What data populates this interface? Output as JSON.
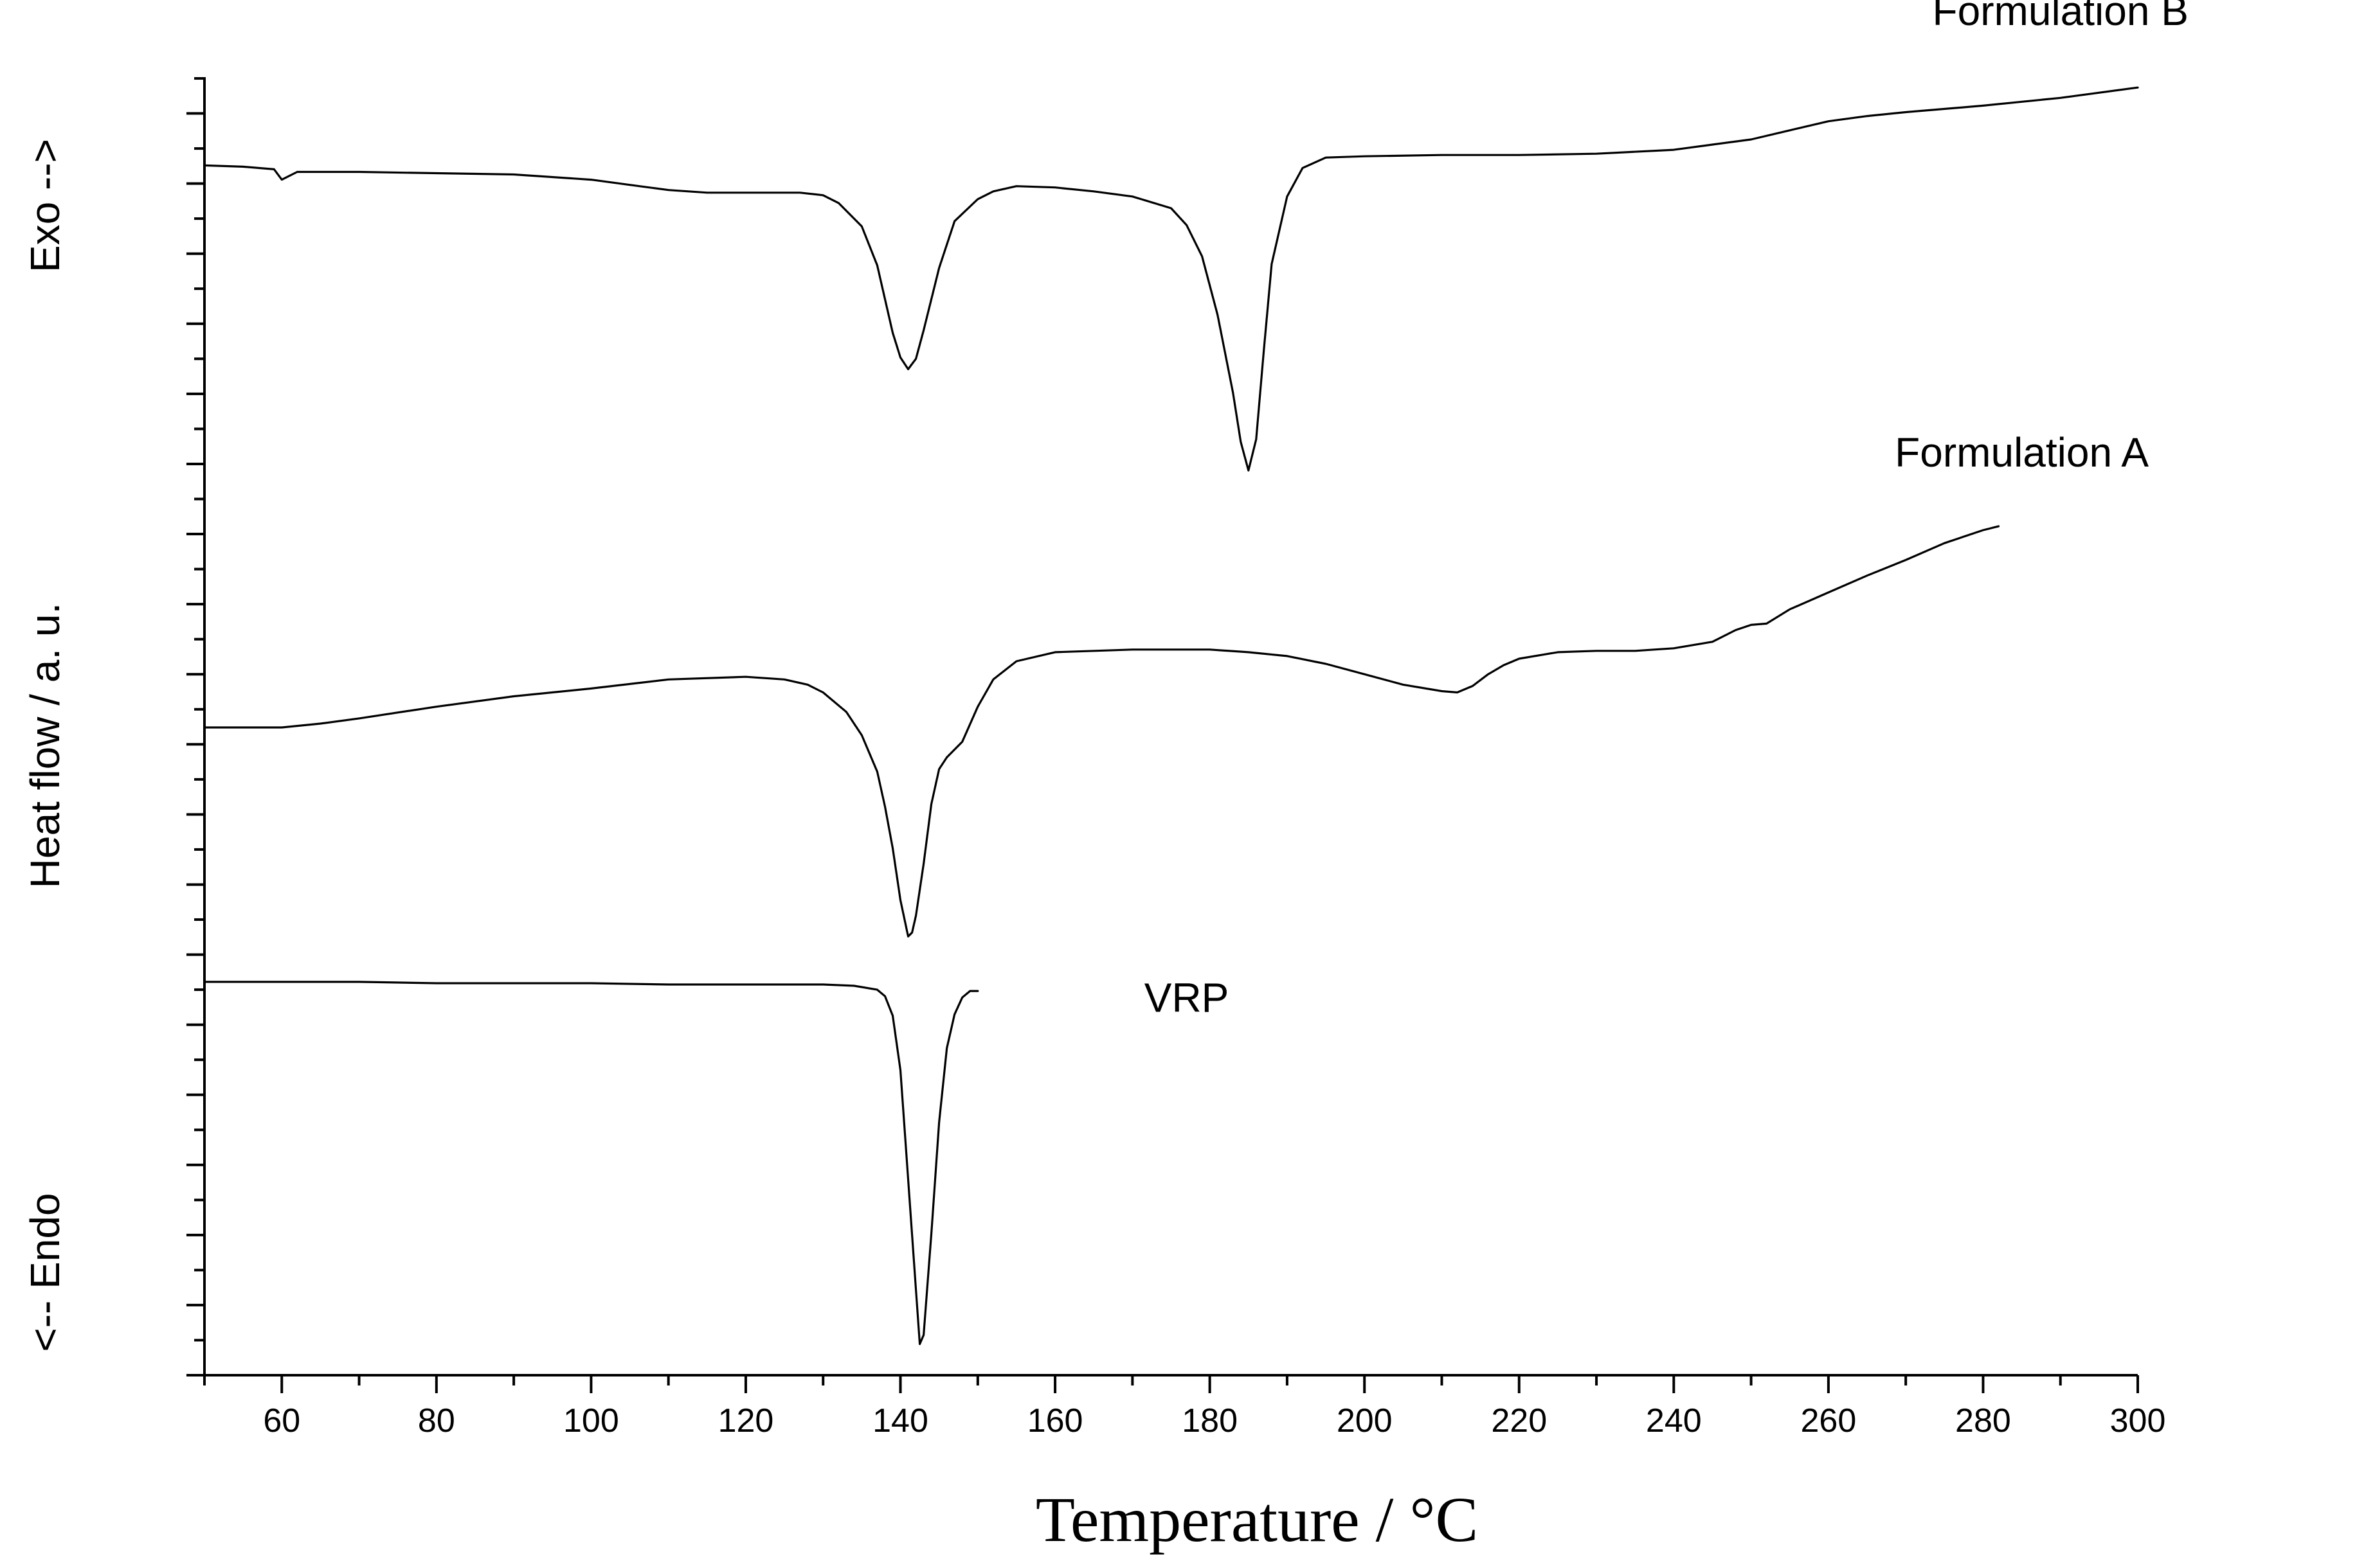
{
  "chart_data": {
    "type": "line",
    "title": "",
    "xlabel": "Temperature / °C",
    "ylabel": "Heat flow / a. u.",
    "ylabel_top": "Exo -->",
    "ylabel_bottom": "<-- Endo",
    "xlim": [
      50,
      300
    ],
    "ylim": [
      0,
      100
    ],
    "x_ticks": [
      60,
      80,
      100,
      120,
      140,
      160,
      180,
      200,
      220,
      240,
      260,
      280,
      300
    ],
    "x_tick_labels": [
      "60",
      "80",
      "100",
      "120",
      "140",
      "160",
      "180",
      "200",
      "220",
      "240",
      "260",
      "280",
      "300"
    ],
    "grid": false,
    "legend": "inline labels next to curves",
    "series": [
      {
        "name": "Formulation B",
        "label_anchor": [
          290,
          104
        ],
        "x": [
          50,
          55,
          59,
          60,
          62,
          65,
          70,
          80,
          90,
          100,
          105,
          110,
          115,
          120,
          127,
          130,
          132,
          135,
          137,
          139,
          140,
          141,
          142,
          143,
          145,
          147,
          150,
          152,
          155,
          160,
          165,
          170,
          175,
          177,
          179,
          181,
          183,
          184,
          185,
          186,
          187,
          188,
          190,
          192,
          195,
          200,
          210,
          220,
          230,
          240,
          245,
          250,
          255,
          260,
          265,
          270,
          280,
          290,
          300
        ],
        "y": [
          93.2,
          93.1,
          92.9,
          92.1,
          92.7,
          92.7,
          92.7,
          92.6,
          92.5,
          92.1,
          91.7,
          91.3,
          91.1,
          91.1,
          91.1,
          90.9,
          90.3,
          88.5,
          85.5,
          80.3,
          78.4,
          77.5,
          78.3,
          80.5,
          85.3,
          88.9,
          90.6,
          91.2,
          91.6,
          91.5,
          91.2,
          90.8,
          89.9,
          88.6,
          86.2,
          81.7,
          75.7,
          71.9,
          69.7,
          72.1,
          79.0,
          85.6,
          90.8,
          93.0,
          93.8,
          93.9,
          94.0,
          94.0,
          94.1,
          94.4,
          94.8,
          95.2,
          95.9,
          96.6,
          97.0,
          97.3,
          97.8,
          98.4,
          99.2
        ]
      },
      {
        "name": "Formulation A",
        "label_anchor": [
          285,
          70
        ],
        "x": [
          50,
          60,
          65,
          70,
          80,
          90,
          100,
          110,
          120,
          125,
          128,
          130,
          133,
          135,
          137,
          138,
          139,
          140,
          141,
          141.5,
          142,
          143,
          144,
          145,
          146,
          148,
          150,
          152,
          155,
          160,
          170,
          180,
          185,
          190,
          195,
          200,
          205,
          210,
          212,
          214,
          216,
          218,
          220,
          225,
          230,
          235,
          240,
          245,
          248,
          250,
          252,
          255,
          260,
          265,
          270,
          275,
          280,
          282
        ],
        "y": [
          49.9,
          49.9,
          50.2,
          50.6,
          51.5,
          52.3,
          52.9,
          53.6,
          53.8,
          53.6,
          53.2,
          52.6,
          51.1,
          49.3,
          46.5,
          43.8,
          40.6,
          36.6,
          33.8,
          34.1,
          35.4,
          39.4,
          44.0,
          46.7,
          47.6,
          48.8,
          51.5,
          53.6,
          55.0,
          55.7,
          55.9,
          55.9,
          55.7,
          55.4,
          54.8,
          54.0,
          53.2,
          52.7,
          52.6,
          53.1,
          54.0,
          54.7,
          55.2,
          55.7,
          55.8,
          55.8,
          56.0,
          56.5,
          57.4,
          57.8,
          57.9,
          59.0,
          60.3,
          61.6,
          62.8,
          64.1,
          65.1,
          65.4
        ]
      },
      {
        "name": "VRP",
        "label_anchor": [
          177,
          28
        ],
        "x": [
          50,
          60,
          70,
          80,
          90,
          100,
          110,
          120,
          130,
          134,
          137,
          138,
          139,
          140,
          141,
          142,
          142.5,
          143,
          144,
          145,
          146,
          147,
          148,
          149,
          150
        ],
        "y": [
          30.3,
          30.3,
          30.3,
          30.2,
          30.2,
          30.2,
          30.1,
          30.1,
          30.1,
          30.0,
          29.7,
          29.2,
          27.7,
          23.5,
          15.1,
          6.6,
          2.4,
          3.1,
          10.9,
          19.5,
          25.2,
          27.8,
          29.1,
          29.6,
          29.6
        ]
      }
    ]
  }
}
